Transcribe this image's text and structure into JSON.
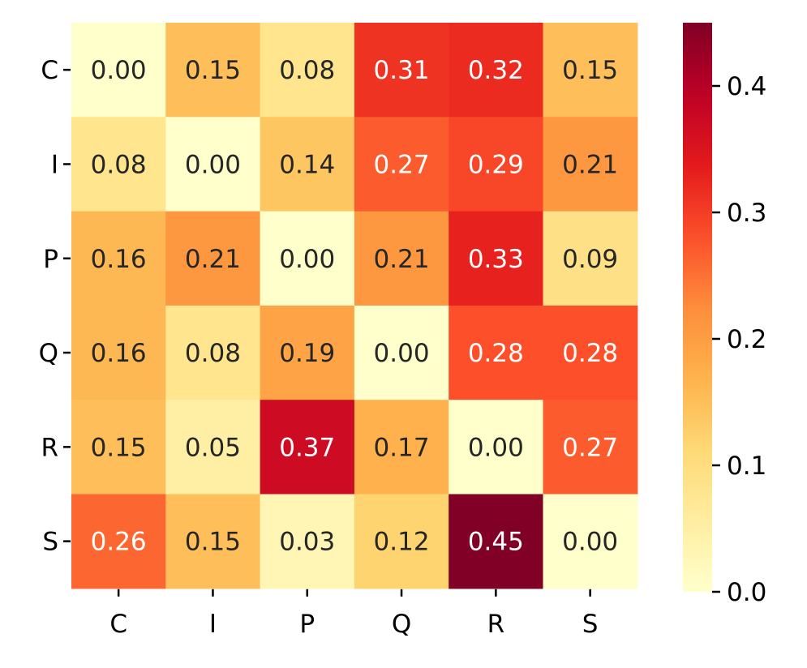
{
  "chart_data": {
    "type": "heatmap",
    "title": "",
    "xlabel": "",
    "ylabel": "",
    "x_categories": [
      "C",
      "I",
      "P",
      "Q",
      "R",
      "S"
    ],
    "y_categories": [
      "C",
      "I",
      "P",
      "Q",
      "R",
      "S"
    ],
    "values": [
      [
        0.0,
        0.15,
        0.08,
        0.31,
        0.32,
        0.15
      ],
      [
        0.08,
        0.0,
        0.14,
        0.27,
        0.29,
        0.21
      ],
      [
        0.16,
        0.21,
        0.0,
        0.21,
        0.33,
        0.09
      ],
      [
        0.16,
        0.08,
        0.19,
        0.0,
        0.28,
        0.28
      ],
      [
        0.15,
        0.05,
        0.37,
        0.17,
        0.0,
        0.27
      ],
      [
        0.26,
        0.15,
        0.03,
        0.12,
        0.45,
        0.0
      ]
    ],
    "annotation_format": "0.00",
    "colormap": "YlOrRd",
    "vmin": 0.0,
    "vmax": 0.45,
    "colorbar": {
      "ticks": [
        0.0,
        0.1,
        0.2,
        0.3,
        0.4
      ],
      "tick_labels": [
        "0.0",
        "0.1",
        "0.2",
        "0.3",
        "0.4"
      ],
      "placement": "right"
    },
    "annotation_colors": {
      "light": "#ffffff",
      "dark": "#262626"
    }
  }
}
